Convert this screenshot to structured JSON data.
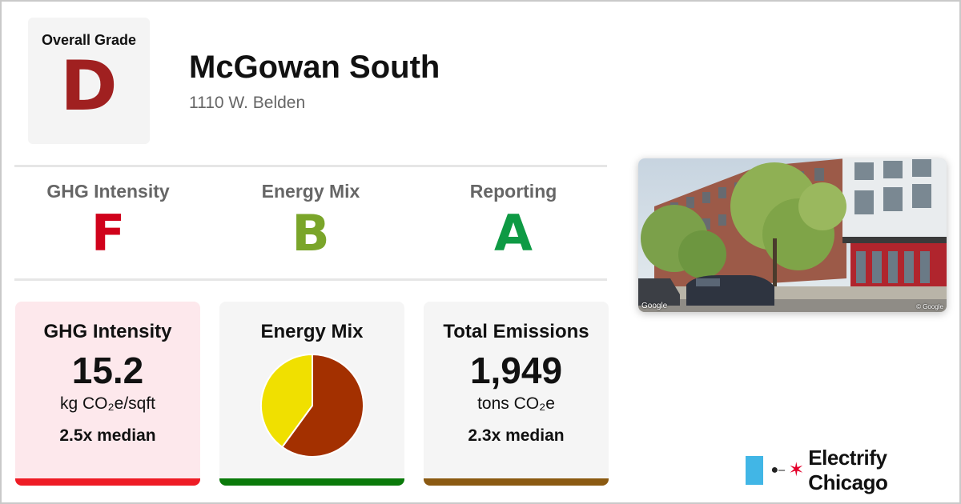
{
  "overall": {
    "title": "Overall Grade",
    "letter": "D",
    "color": "#a02020"
  },
  "building": {
    "name": "McGowan South",
    "address": "1110 W. Belden"
  },
  "subgrades": [
    {
      "label": "GHG Intensity",
      "letter": "F",
      "color": "#d0021b"
    },
    {
      "label": "Energy Mix",
      "letter": "B",
      "color": "#7aa52a"
    },
    {
      "label": "Reporting",
      "letter": "A",
      "color": "#0e9a44"
    }
  ],
  "cards": {
    "ghg": {
      "title": "GHG Intensity",
      "value": "15.2",
      "unit": "kg CO₂e/sqft",
      "median": "2.5x median",
      "bar_color": "#ee1c25",
      "bg": "#fde8ec"
    },
    "mix": {
      "title": "Energy Mix",
      "bar_color": "#0a7a0a",
      "pie": {
        "gas_fraction": 0.6,
        "electric_fraction": 0.4,
        "gas_color": "#a33000",
        "electric_color": "#f0e000"
      }
    },
    "total": {
      "title": "Total Emissions",
      "value": "1,949",
      "unit": "tons CO₂e",
      "median": "2.3x median",
      "bar_color": "#8b5a12"
    }
  },
  "photo": {
    "credit_left": "Google",
    "credit_right": "© Google"
  },
  "brand": {
    "name": "Electrify Chicago",
    "flag_color": "#41b6e6",
    "star_color": "#e4002b"
  }
}
